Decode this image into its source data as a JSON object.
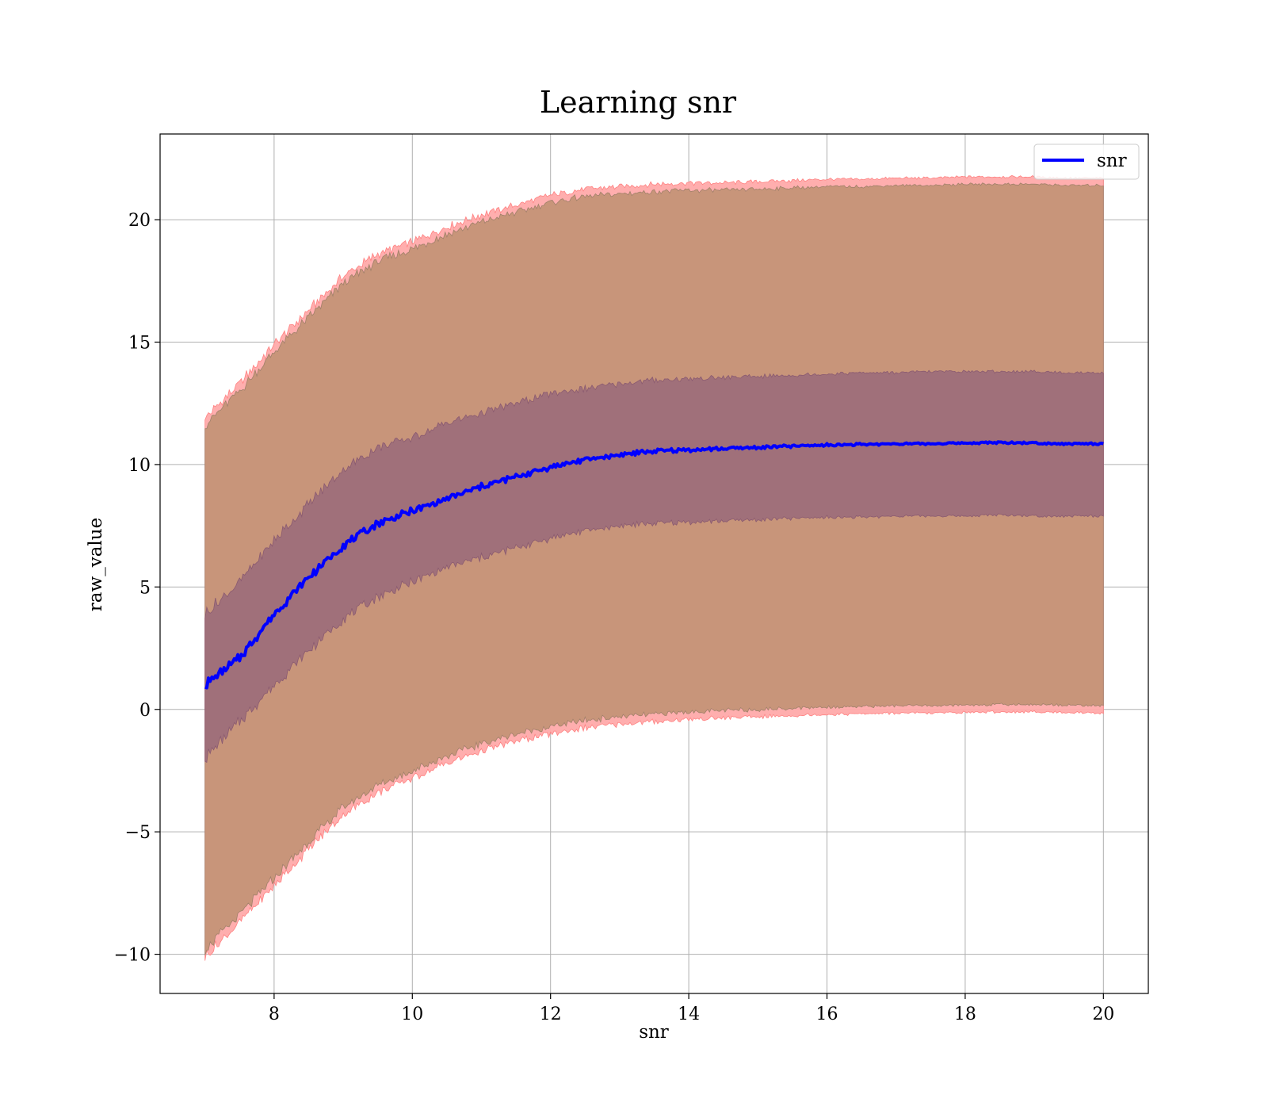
{
  "chart_data": {
    "type": "line",
    "title": "Learning snr",
    "xlabel": "snr",
    "ylabel": "raw_value",
    "xlim": [
      6.35,
      20.65
    ],
    "ylim": [
      -11.6,
      23.5
    ],
    "xticks": [
      8,
      10,
      12,
      14,
      16,
      18,
      20
    ],
    "yticks": [
      -10,
      -5,
      0,
      5,
      10,
      15,
      20
    ],
    "ytick_labels": [
      "−10",
      "−5",
      "0",
      "5",
      "10",
      "15",
      "20"
    ],
    "grid": true,
    "legend_position": "top-right",
    "colors": {
      "mean_line": "#0000ff",
      "outer_band_light": "#ffaaaa",
      "outer_band": "#c8957a",
      "inner_band": "#a0707a"
    },
    "x": [
      7.0,
      7.5,
      8.0,
      8.5,
      9.0,
      9.5,
      10.0,
      10.5,
      11.0,
      11.5,
      12.0,
      12.5,
      13.0,
      13.5,
      14.0,
      14.5,
      15.0,
      15.5,
      16.0,
      16.5,
      17.0,
      17.5,
      18.0,
      18.5,
      19.0,
      19.5,
      20.0
    ],
    "series": [
      {
        "name": "snr",
        "role": "mean",
        "values": [
          1.0,
          2.1,
          3.9,
          5.4,
          6.7,
          7.6,
          8.1,
          8.6,
          9.1,
          9.5,
          9.9,
          10.2,
          10.4,
          10.55,
          10.6,
          10.65,
          10.7,
          10.75,
          10.8,
          10.82,
          10.85,
          10.85,
          10.88,
          10.9,
          10.88,
          10.85,
          10.85
        ]
      },
      {
        "role": "inner_band",
        "lower": [
          -2.0,
          -0.5,
          1.0,
          2.4,
          3.7,
          4.6,
          5.2,
          5.8,
          6.2,
          6.6,
          7.0,
          7.3,
          7.5,
          7.6,
          7.65,
          7.7,
          7.75,
          7.8,
          7.85,
          7.85,
          7.9,
          7.9,
          7.9,
          7.95,
          7.9,
          7.9,
          7.9
        ],
        "upper": [
          3.9,
          5.2,
          6.9,
          8.4,
          9.8,
          10.7,
          11.1,
          11.7,
          12.1,
          12.5,
          12.9,
          13.1,
          13.3,
          13.45,
          13.5,
          13.55,
          13.6,
          13.65,
          13.7,
          13.75,
          13.75,
          13.8,
          13.8,
          13.8,
          13.8,
          13.75,
          13.75
        ]
      },
      {
        "role": "outer_band",
        "lower": [
          -9.8,
          -8.4,
          -6.9,
          -5.4,
          -4.0,
          -3.1,
          -2.5,
          -1.9,
          -1.4,
          -1.0,
          -0.7,
          -0.45,
          -0.3,
          -0.2,
          -0.1,
          -0.05,
          0.0,
          0.05,
          0.1,
          0.12,
          0.15,
          0.15,
          0.18,
          0.2,
          0.2,
          0.18,
          0.15
        ],
        "upper": [
          11.6,
          13.0,
          14.6,
          16.0,
          17.4,
          18.3,
          18.8,
          19.4,
          19.9,
          20.3,
          20.7,
          20.95,
          21.05,
          21.15,
          21.2,
          21.2,
          21.25,
          21.3,
          21.35,
          21.35,
          21.4,
          21.4,
          21.45,
          21.45,
          21.45,
          21.4,
          21.4
        ]
      }
    ]
  }
}
